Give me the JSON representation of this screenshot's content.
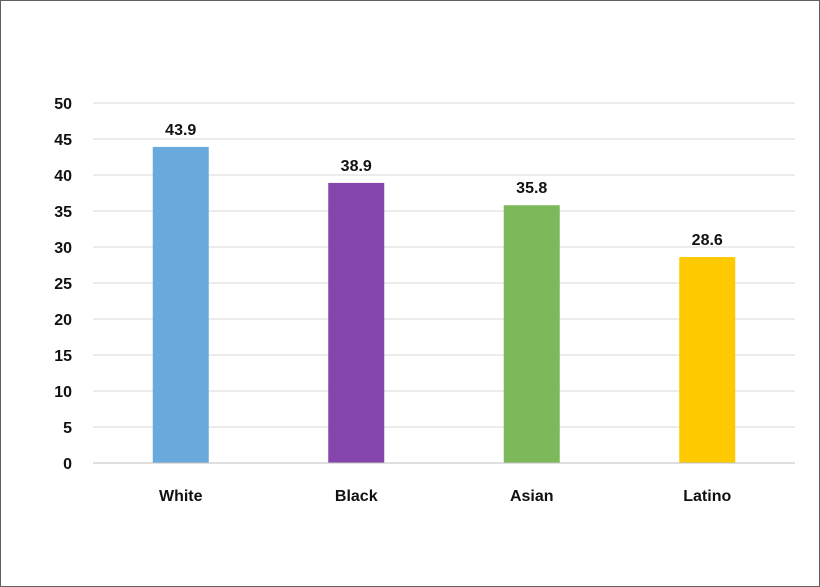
{
  "chart_data": {
    "type": "bar",
    "categories": [
      "White",
      "Black",
      "Asian",
      "Latino"
    ],
    "values": [
      43.9,
      38.9,
      35.8,
      28.6
    ],
    "data_labels": [
      "43.9",
      "38.9",
      "35.8",
      "28.6"
    ],
    "colors": [
      "#6aa9dc",
      "#8645ac",
      "#7db85a",
      "#ffc900"
    ],
    "ylim": [
      0,
      50
    ],
    "yticks": [
      0,
      5,
      10,
      15,
      20,
      25,
      30,
      35,
      40,
      45,
      50
    ],
    "title": "",
    "xlabel": "",
    "ylabel": "",
    "grid": true,
    "legend": "none"
  }
}
